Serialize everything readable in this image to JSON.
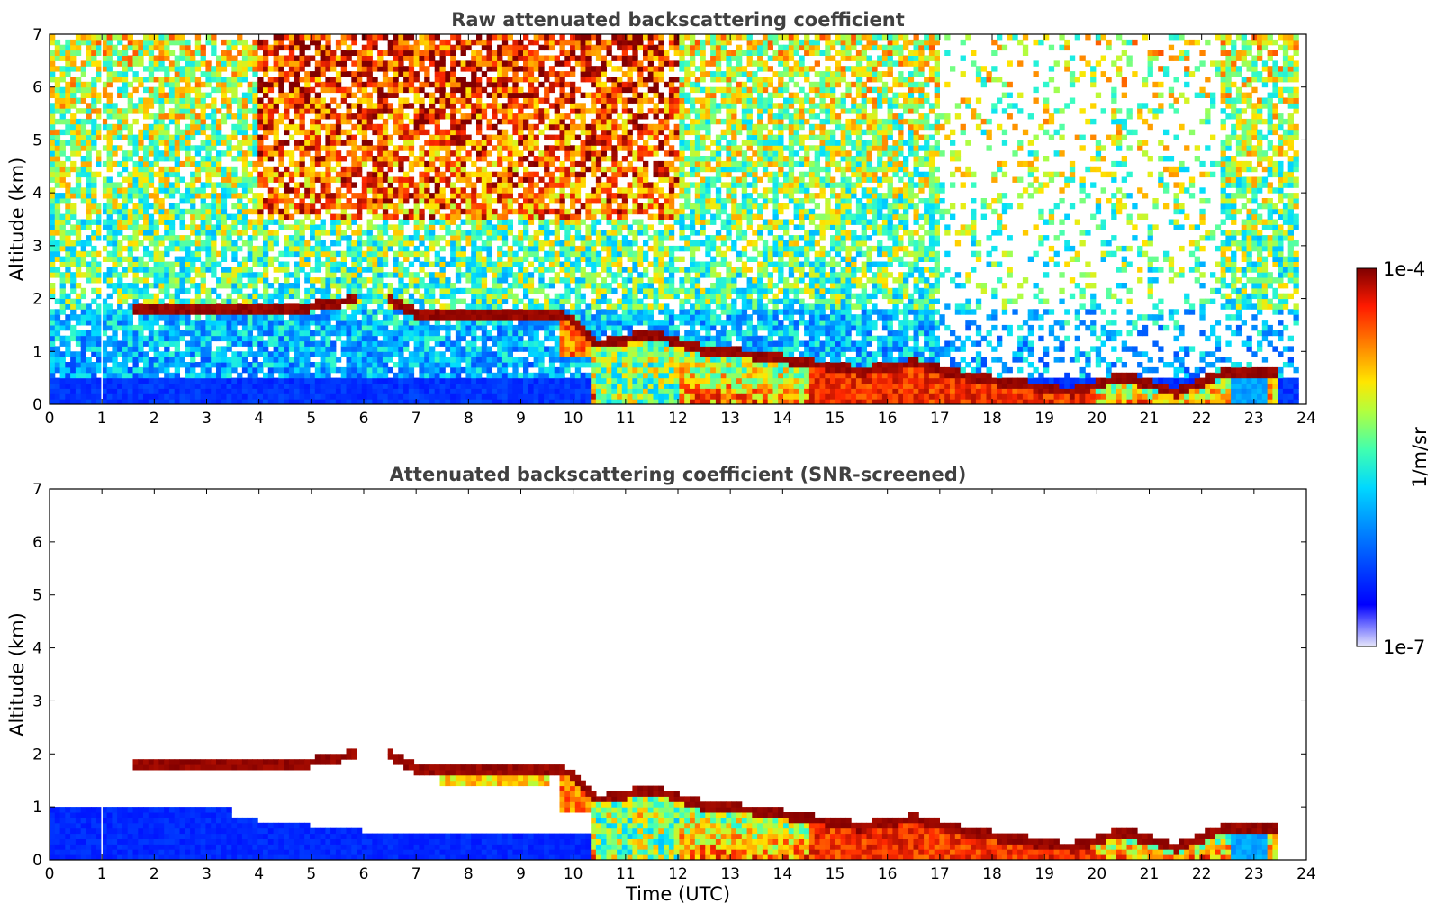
{
  "chart_data": [
    {
      "type": "heatmap",
      "title": "Raw attenuated backscattering coefficient",
      "xlabel": "",
      "ylabel": "Altitude (km)",
      "xlim": [
        0,
        24
      ],
      "ylim": [
        0,
        7
      ],
      "xticks": [
        "0",
        "1",
        "2",
        "3",
        "4",
        "5",
        "6",
        "7",
        "8",
        "9",
        "10",
        "11",
        "12",
        "13",
        "14",
        "15",
        "16",
        "17",
        "18",
        "19",
        "20",
        "21",
        "22",
        "23",
        "24"
      ],
      "yticks": [
        "0",
        "1",
        "2",
        "3",
        "4",
        "5",
        "6",
        "7"
      ],
      "cloud_base_km": {
        "time": [
          1.6,
          2.5,
          3.5,
          4.5,
          5.2,
          5.8,
          6.5,
          7.0,
          8.0,
          9.0,
          9.8,
          10.5,
          11.5,
          12.5,
          13.5,
          14.5,
          15.5,
          16.5,
          17.5,
          18.5,
          19.5,
          20.5,
          21.5,
          22.5,
          23.5
        ],
        "altitude": [
          1.75,
          1.75,
          1.78,
          1.75,
          1.85,
          1.95,
          1.95,
          1.7,
          1.7,
          1.7,
          1.7,
          1.1,
          1.3,
          1.0,
          0.9,
          0.75,
          0.6,
          0.75,
          0.5,
          0.35,
          0.2,
          0.5,
          0.2,
          0.6,
          0.6
        ]
      }
    },
    {
      "type": "heatmap",
      "title": "Attenuated backscattering coefficient (SNR-screened)",
      "xlabel": "Time (UTC)",
      "ylabel": "Altitude (km)",
      "xlim": [
        0,
        24
      ],
      "ylim": [
        0,
        7
      ],
      "xticks": [
        "0",
        "1",
        "2",
        "3",
        "4",
        "5",
        "6",
        "7",
        "8",
        "9",
        "10",
        "11",
        "12",
        "13",
        "14",
        "15",
        "16",
        "17",
        "18",
        "19",
        "20",
        "21",
        "22",
        "23",
        "24"
      ],
      "yticks": [
        "0",
        "1",
        "2",
        "3",
        "4",
        "5",
        "6",
        "7"
      ]
    }
  ],
  "colorbar": {
    "label": "1/m/sr",
    "top_label": "1e-4",
    "bottom_label": "1e-7",
    "scale": "log",
    "colormap": "jet"
  }
}
